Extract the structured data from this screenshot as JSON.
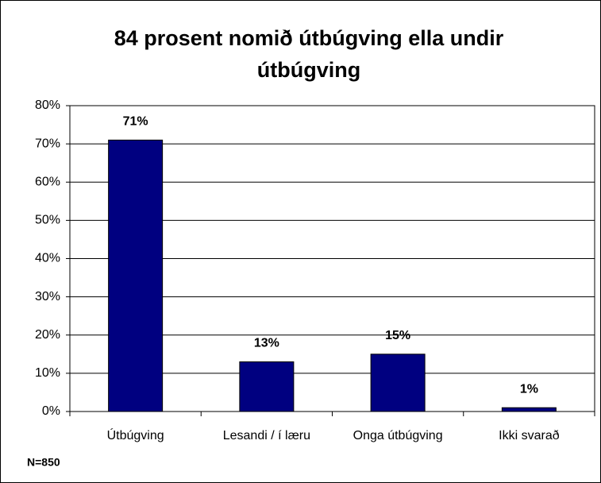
{
  "chart_data": {
    "type": "bar",
    "title": "84 prosent nomið útbúgving ella undir útbúgving",
    "categories": [
      "Útbúgving",
      "Lesandi / í læru",
      "Onga útbúgving",
      "Ikki svarað"
    ],
    "values": [
      71,
      13,
      15,
      1
    ],
    "value_labels": [
      "71%",
      "13%",
      "15%",
      "1%"
    ],
    "color": "#000080",
    "ylim": [
      0,
      80
    ],
    "yticks": [
      {
        "value": 0,
        "label": "0%"
      },
      {
        "value": 10,
        "label": "10%"
      },
      {
        "value": 20,
        "label": "20%"
      },
      {
        "value": 30,
        "label": "30%"
      },
      {
        "value": 40,
        "label": "40%"
      },
      {
        "value": 50,
        "label": "50%"
      },
      {
        "value": 60,
        "label": "60%"
      },
      {
        "value": 70,
        "label": "70%"
      },
      {
        "value": 80,
        "label": "80%"
      }
    ],
    "grid": true,
    "note": "N=850"
  }
}
